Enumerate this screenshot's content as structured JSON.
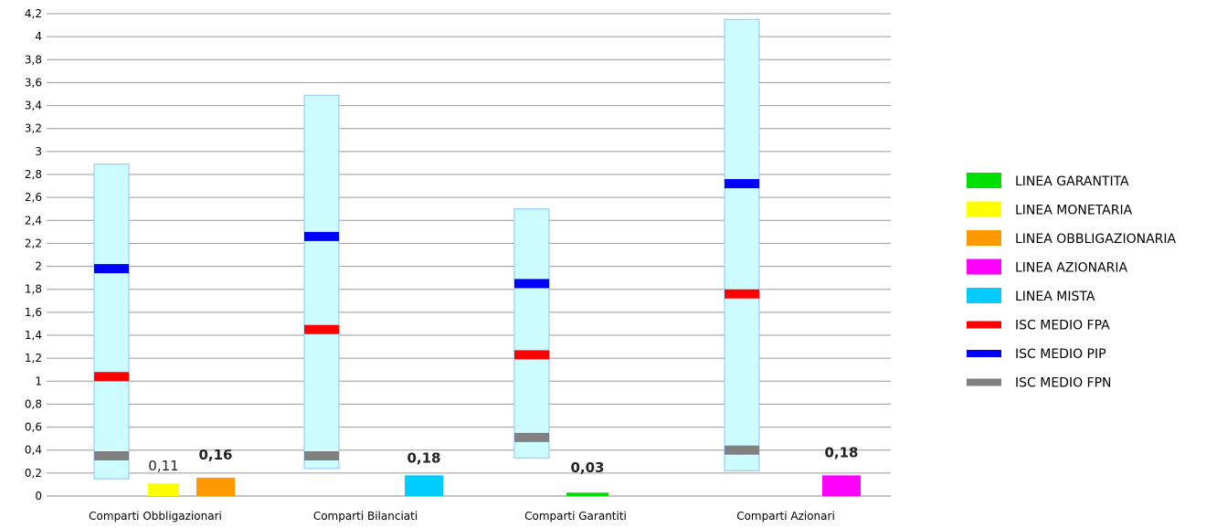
{
  "chart_data": {
    "type": "bar",
    "categories": [
      "Comparti Obbligazionari",
      "Comparti Bilanciati",
      "Comparti Garantiti",
      "Comparti Azionari"
    ],
    "ylim": [
      0,
      4.2
    ],
    "y_ticks": [
      "0",
      "0,2",
      "0,4",
      "0,6",
      "0,8",
      "1",
      "1,2",
      "1,4",
      "1,6",
      "1,8",
      "2",
      "2,2",
      "2,4",
      "2,6",
      "2,8",
      "3",
      "3,2",
      "3,4",
      "3,6",
      "3,8",
      "4",
      "4,2"
    ],
    "grid": true,
    "legend_position": "right",
    "ranges": [
      {
        "category": "Comparti Obbligazionari",
        "min": 0.15,
        "max": 2.89
      },
      {
        "category": "Comparti Bilanciati",
        "min": 0.24,
        "max": 3.49
      },
      {
        "category": "Comparti Garantiti",
        "min": 0.33,
        "max": 2.5
      },
      {
        "category": "Comparti Azionari",
        "min": 0.22,
        "max": 4.15
      }
    ],
    "series": [
      {
        "name": "LINEA GARANTITA",
        "color": "#00e000",
        "kind": "bar",
        "points": [
          {
            "category": "Comparti Garantiti",
            "value": 0.03,
            "label": "0,03",
            "bold": true
          }
        ]
      },
      {
        "name": "LINEA MONETARIA",
        "color": "#ffff00",
        "kind": "bar",
        "points": [
          {
            "category": "Comparti Obbligazionari",
            "value": 0.11,
            "label": "0,11",
            "bold": false
          }
        ]
      },
      {
        "name": "LINEA OBBLIGAZIONARIA",
        "color": "#ff9900",
        "kind": "bar",
        "points": [
          {
            "category": "Comparti Obbligazionari",
            "value": 0.16,
            "label": "0,16",
            "bold": true
          }
        ]
      },
      {
        "name": "LINEA AZIONARIA",
        "color": "#ff00ff",
        "kind": "bar",
        "points": [
          {
            "category": "Comparti Azionari",
            "value": 0.18,
            "label": "0,18",
            "bold": true
          }
        ]
      },
      {
        "name": "LINEA MISTA",
        "color": "#00ccff",
        "kind": "bar",
        "points": [
          {
            "category": "Comparti Bilanciati",
            "value": 0.18,
            "label": "0,18",
            "bold": true
          }
        ]
      },
      {
        "name": "ISC MEDIO FPA",
        "color": "#ff0000",
        "kind": "marker",
        "values": [
          1.04,
          1.45,
          1.23,
          1.76
        ]
      },
      {
        "name": "ISC MEDIO PIP",
        "color": "#0000ff",
        "kind": "marker",
        "values": [
          1.98,
          2.26,
          1.85,
          2.72
        ]
      },
      {
        "name": "ISC MEDIO FPN",
        "color": "#808080",
        "kind": "marker",
        "values": [
          0.35,
          0.35,
          0.51,
          0.4
        ]
      }
    ],
    "range_color": "#ccfcff",
    "range_border_color": "#99ccff"
  }
}
